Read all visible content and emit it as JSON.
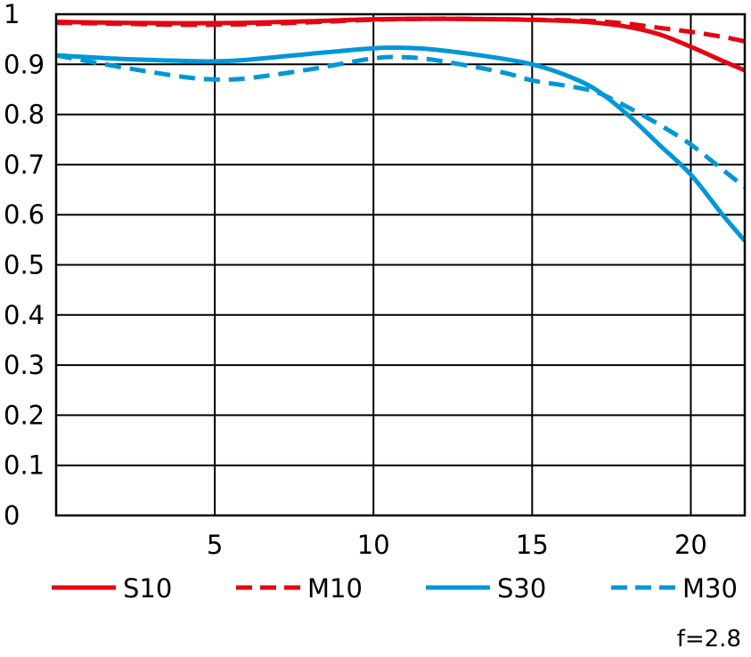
{
  "chart_data": {
    "type": "line",
    "xlim": [
      0,
      21.7
    ],
    "ylim": [
      0,
      1
    ],
    "x_ticks": [
      5,
      10,
      15,
      20
    ],
    "y_ticks": [
      0,
      0.1,
      0.2,
      0.3,
      0.4,
      0.5,
      0.6,
      0.7,
      0.8,
      0.9,
      1
    ],
    "y_tick_labels": [
      "0",
      "0.1",
      "0.2",
      "0.3",
      "0.4",
      "0.5",
      "0.6",
      "0.7",
      "0.8",
      "0.9",
      "1"
    ],
    "x_tick_labels": [
      "5",
      "10",
      "15",
      "20"
    ],
    "grid": true,
    "legend_position": "bottom",
    "footer_note": "f=2.8",
    "series": [
      {
        "name": "S10",
        "color": "#e30613",
        "style": "solid",
        "x": [
          0,
          2,
          4,
          6,
          8,
          10,
          12,
          14,
          16,
          17,
          18,
          19,
          20,
          21,
          21.7
        ],
        "y": [
          0.985,
          0.983,
          0.982,
          0.983,
          0.986,
          0.99,
          0.991,
          0.99,
          0.987,
          0.983,
          0.975,
          0.96,
          0.935,
          0.907,
          0.888
        ]
      },
      {
        "name": "M10",
        "color": "#e30613",
        "style": "dashed",
        "x": [
          0,
          2,
          4,
          6,
          8,
          10,
          12,
          14,
          16,
          17,
          18,
          19,
          20,
          21,
          21.7
        ],
        "y": [
          0.983,
          0.981,
          0.979,
          0.98,
          0.984,
          0.989,
          0.991,
          0.99,
          0.988,
          0.986,
          0.981,
          0.973,
          0.965,
          0.955,
          0.946
        ]
      },
      {
        "name": "S30",
        "color": "#0097d7",
        "style": "solid",
        "x": [
          0,
          2,
          4,
          5,
          6,
          8,
          10,
          11,
          12,
          14,
          15,
          16,
          17,
          18,
          19,
          20,
          21,
          21.7
        ],
        "y": [
          0.918,
          0.911,
          0.907,
          0.906,
          0.909,
          0.921,
          0.932,
          0.933,
          0.929,
          0.912,
          0.9,
          0.88,
          0.85,
          0.8,
          0.74,
          0.68,
          0.6,
          0.548
        ]
      },
      {
        "name": "M30",
        "color": "#0097d7",
        "style": "dashed",
        "x": [
          0,
          2,
          4,
          5,
          6,
          8,
          10,
          11,
          12,
          14,
          15,
          16,
          17,
          18,
          19,
          20,
          21,
          21.7
        ],
        "y": [
          0.918,
          0.895,
          0.875,
          0.87,
          0.872,
          0.89,
          0.912,
          0.914,
          0.908,
          0.885,
          0.868,
          0.858,
          0.845,
          0.815,
          0.78,
          0.74,
          0.69,
          0.655
        ]
      }
    ]
  }
}
